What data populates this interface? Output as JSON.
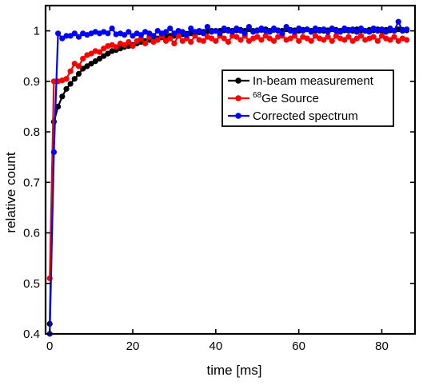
{
  "chart_data": {
    "type": "line",
    "title": "",
    "xlabel": "time [ms]",
    "ylabel": "relative count",
    "xlim": [
      -1,
      88
    ],
    "ylim": [
      0.4,
      1.05
    ],
    "xticks": [
      0,
      20,
      40,
      60,
      80
    ],
    "xtick_labels": [
      "0",
      "20",
      "40",
      "60",
      "80"
    ],
    "yticks": [
      0.4,
      0.5,
      0.6,
      0.7,
      0.8,
      0.9,
      1.0
    ],
    "ytick_labels": [
      "0.4",
      "0.5",
      "0.6",
      "0.7",
      "0.8",
      "0.9",
      "1"
    ],
    "grid": false,
    "legend_position": "right-center",
    "legend": [
      {
        "prefix": "",
        "sup": "",
        "text": "In-beam measurement"
      },
      {
        "prefix": "",
        "sup": "68",
        "text": "Ge Source"
      },
      {
        "prefix": "",
        "sup": "",
        "text": "Corrected spectrum"
      }
    ],
    "series": [
      {
        "name": "In-beam measurement",
        "color": "#000000",
        "x": [
          0,
          1,
          2,
          3,
          4,
          5,
          6,
          7,
          8,
          9,
          10,
          11,
          12,
          13,
          14,
          15,
          16,
          17,
          18,
          19,
          20,
          21,
          22,
          23,
          24,
          25,
          26,
          27,
          28,
          29,
          30,
          31,
          32,
          33,
          34,
          35,
          36,
          37,
          38,
          39,
          40,
          41,
          42,
          43,
          44,
          45,
          46,
          47,
          48,
          49,
          50,
          51,
          52,
          53,
          54,
          55,
          56,
          57,
          58,
          59,
          60,
          61,
          62,
          63,
          64,
          65,
          66,
          67,
          68,
          69,
          70,
          71,
          72,
          73,
          74,
          75,
          76,
          77,
          78,
          79,
          80,
          81,
          82,
          83,
          84,
          85,
          86
        ],
        "y": [
          0.42,
          0.82,
          0.85,
          0.87,
          0.885,
          0.895,
          0.905,
          0.915,
          0.925,
          0.93,
          0.935,
          0.94,
          0.945,
          0.95,
          0.955,
          0.96,
          0.962,
          0.965,
          0.968,
          0.97,
          0.972,
          0.975,
          0.978,
          0.98,
          0.982,
          0.984,
          0.985,
          0.987,
          0.988,
          0.99,
          0.99,
          0.992,
          0.993,
          0.994,
          0.995,
          0.996,
          0.997,
          0.998,
          0.999,
          1.0,
          1.0,
          1.0,
          1.001,
          1.002,
          1.0,
          1.001,
          1.002,
          1.0,
          1.003,
          1.0,
          1.001,
          1.002,
          1.003,
          1.0,
          1.002,
          1.001,
          1.0,
          1.003,
          1.002,
          1.001,
          1.0,
          1.002,
          1.003,
          1.0,
          1.001,
          1.002,
          1.0,
          1.001,
          1.003,
          1.002,
          1.0,
          1.001,
          1.002,
          1.0,
          1.003,
          1.001,
          1.0,
          1.002,
          1.001,
          1.003,
          1.0,
          1.002,
          1.001,
          1.0,
          1.003,
          1.002,
          1.001
        ]
      },
      {
        "name": "68Ge Source",
        "color": "#ff0000",
        "x": [
          0,
          1,
          2,
          3,
          4,
          5,
          6,
          7,
          8,
          9,
          10,
          11,
          12,
          13,
          14,
          15,
          16,
          17,
          18,
          19,
          20,
          21,
          22,
          23,
          24,
          25,
          26,
          27,
          28,
          29,
          30,
          31,
          32,
          33,
          34,
          35,
          36,
          37,
          38,
          39,
          40,
          41,
          42,
          43,
          44,
          45,
          46,
          47,
          48,
          49,
          50,
          51,
          52,
          53,
          54,
          55,
          56,
          57,
          58,
          59,
          60,
          61,
          62,
          63,
          64,
          65,
          66,
          67,
          68,
          69,
          70,
          71,
          72,
          73,
          74,
          75,
          76,
          77,
          78,
          79,
          80,
          81,
          82,
          83,
          84,
          85,
          86
        ],
        "y": [
          0.51,
          0.9,
          0.9,
          0.902,
          0.905,
          0.92,
          0.935,
          0.93,
          0.945,
          0.952,
          0.955,
          0.96,
          0.958,
          0.965,
          0.97,
          0.972,
          0.968,
          0.975,
          0.972,
          0.978,
          0.97,
          0.98,
          0.985,
          0.975,
          0.988,
          0.978,
          0.982,
          0.99,
          0.98,
          0.985,
          0.975,
          0.99,
          0.98,
          0.985,
          0.978,
          0.99,
          0.982,
          0.98,
          0.988,
          0.985,
          0.98,
          0.99,
          0.985,
          0.978,
          0.99,
          0.988,
          0.982,
          0.99,
          0.98,
          0.985,
          0.988,
          0.982,
          0.99,
          0.985,
          0.98,
          0.988,
          0.99,
          0.982,
          0.985,
          0.99,
          0.98,
          0.988,
          0.985,
          0.98,
          0.99,
          0.985,
          0.982,
          0.988,
          0.98,
          0.99,
          0.985,
          0.982,
          0.988,
          0.98,
          0.985,
          0.99,
          0.982,
          0.985,
          0.988,
          0.98,
          0.99,
          0.985,
          0.982,
          0.988,
          0.98,
          0.985,
          0.982
        ]
      },
      {
        "name": "Corrected spectrum",
        "color": "#0000ff",
        "x": [
          0,
          1,
          2,
          3,
          4,
          5,
          6,
          7,
          8,
          9,
          10,
          11,
          12,
          13,
          14,
          15,
          16,
          17,
          18,
          19,
          20,
          21,
          22,
          23,
          24,
          25,
          26,
          27,
          28,
          29,
          30,
          31,
          32,
          33,
          34,
          35,
          36,
          37,
          38,
          39,
          40,
          41,
          42,
          43,
          44,
          45,
          46,
          47,
          48,
          49,
          50,
          51,
          52,
          53,
          54,
          55,
          56,
          57,
          58,
          59,
          60,
          61,
          62,
          63,
          64,
          65,
          66,
          67,
          68,
          69,
          70,
          71,
          72,
          73,
          74,
          75,
          76,
          77,
          78,
          79,
          80,
          81,
          82,
          83,
          84,
          85,
          86
        ],
        "y": [
          0.4,
          0.76,
          0.995,
          0.985,
          0.99,
          0.99,
          0.995,
          0.988,
          0.995,
          0.992,
          0.995,
          0.998,
          0.995,
          0.998,
          0.995,
          1.005,
          0.993,
          0.995,
          0.992,
          0.998,
          0.99,
          0.995,
          0.992,
          0.998,
          0.995,
          0.99,
          1.0,
          0.995,
          0.998,
          1.005,
          0.995,
          1.0,
          0.998,
          0.992,
          1.005,
          0.998,
          1.0,
          0.995,
          1.008,
          0.998,
          1.0,
          0.995,
          1.005,
          1.0,
          0.998,
          1.005,
          1.0,
          0.995,
          1.008,
          0.998,
          1.0,
          1.005,
          1.0,
          0.998,
          1.005,
          1.0,
          0.995,
          1.008,
          1.0,
          0.998,
          1.005,
          1.0,
          1.003,
          0.998,
          1.005,
          1.0,
          1.003,
          0.998,
          1.005,
          1.0,
          0.998,
          1.005,
          1.0,
          1.003,
          0.998,
          1.005,
          1.0,
          0.998,
          1.005,
          1.0,
          1.003,
          0.998,
          1.005,
          1.0,
          1.018,
          1.0,
          1.003
        ]
      }
    ]
  }
}
